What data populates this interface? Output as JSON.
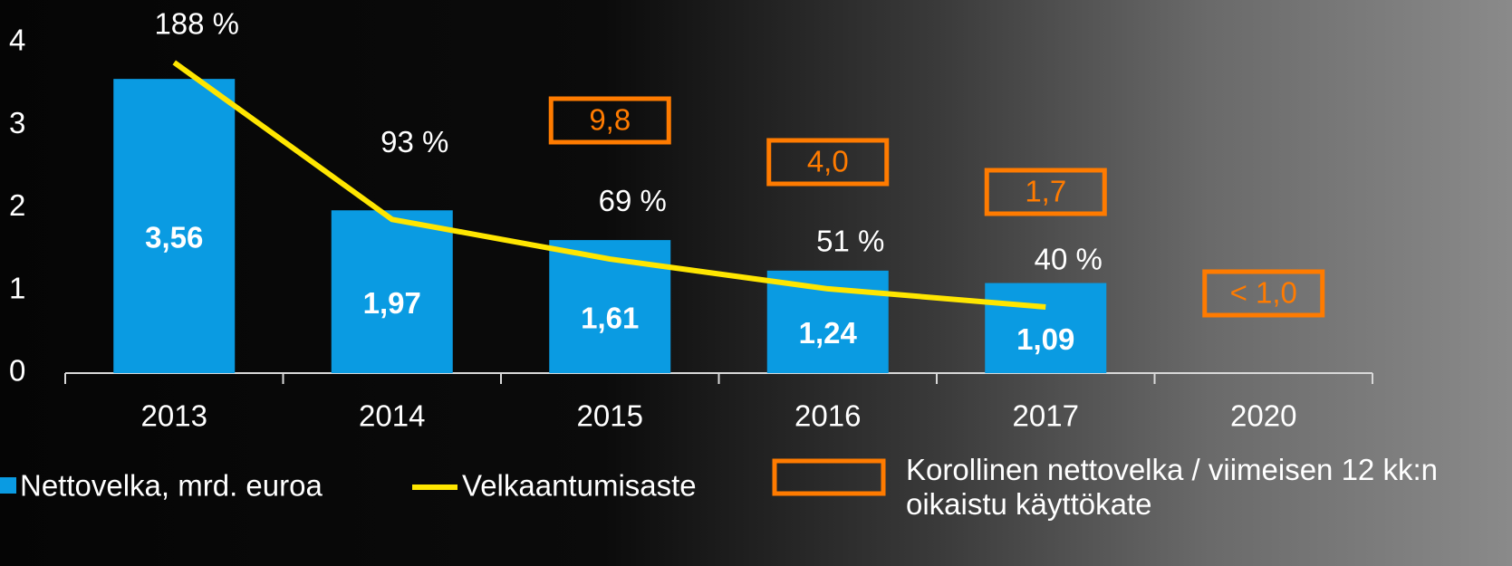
{
  "chart_data": {
    "type": "bar",
    "categories": [
      "2013",
      "2014",
      "2015",
      "2016",
      "2017",
      "2020"
    ],
    "series": [
      {
        "name": "Nettovelka, mrd. euroa",
        "type": "bar",
        "color": "#0a9be2",
        "values": [
          3.56,
          1.97,
          1.61,
          1.24,
          1.09,
          null
        ],
        "value_labels": [
          "3,56",
          "1,97",
          "1,61",
          "1,24",
          "1,09",
          null
        ]
      },
      {
        "name": "Velkaantumisaste",
        "type": "line",
        "axis": "y2",
        "color": "#ffe600",
        "values": [
          188,
          93,
          69,
          51,
          40,
          null
        ],
        "value_labels": [
          "188 %",
          "93 %",
          "69 %",
          "51 %",
          "40 %",
          null
        ]
      },
      {
        "name": "Korollinen nettovelka / viimeisen 12 kk:n oikaistu käyttökate",
        "type": "box",
        "color": "#ff7b00",
        "values": [
          null,
          null,
          9.8,
          4.0,
          1.7,
          1.0
        ],
        "value_labels": [
          null,
          null,
          "9,8",
          "4,0",
          "1,7",
          "< 1,0"
        ]
      }
    ],
    "ylim": [
      0,
      4
    ],
    "yticks": [
      0,
      1,
      2,
      3,
      4
    ],
    "y2lim": [
      0,
      200
    ]
  }
}
